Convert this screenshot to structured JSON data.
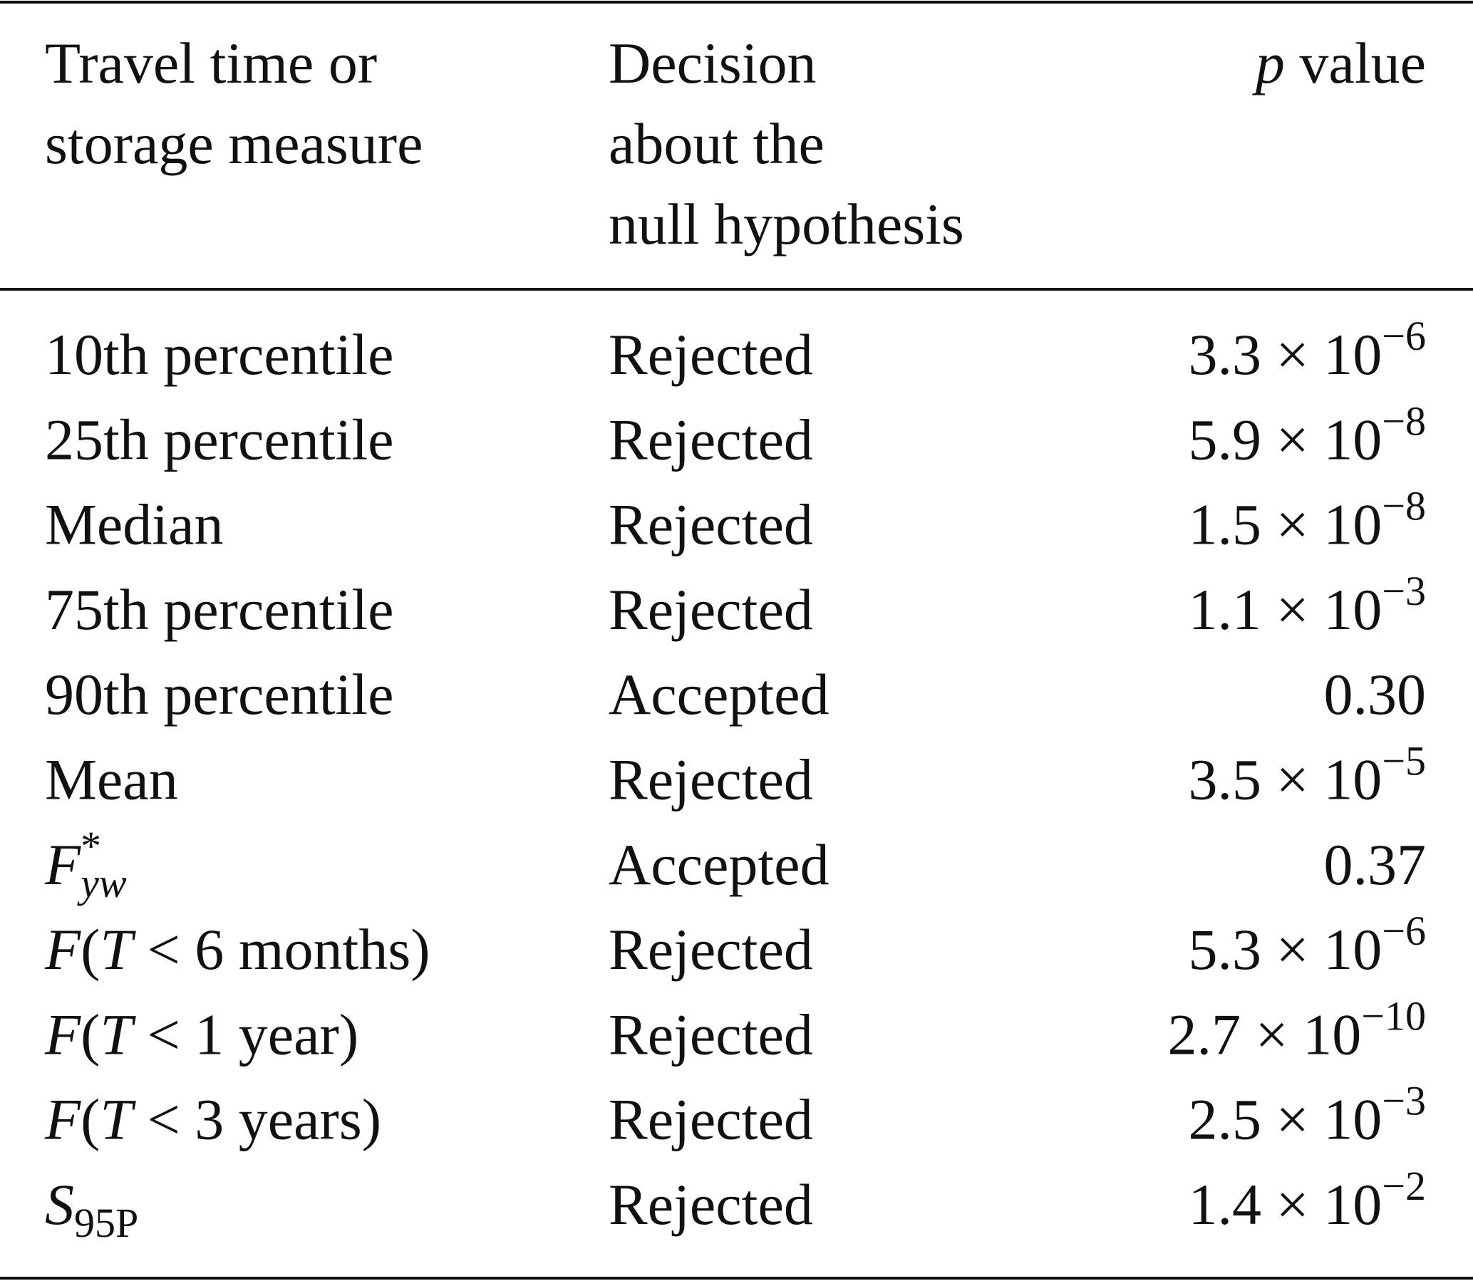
{
  "table": {
    "header": {
      "measure": [
        "Travel time or",
        "storage measure"
      ],
      "decision": [
        "Decision",
        "about the",
        "null hypothesis"
      ],
      "p_value": [
        {
          "text": "p",
          "style": "i"
        },
        {
          "text": " value"
        }
      ]
    },
    "rows": [
      {
        "measure": [
          {
            "text": "10th percentile"
          }
        ],
        "decision": "Rejected",
        "p_value": [
          {
            "text": "3.3 × 10"
          },
          {
            "text": "−6",
            "style": "sup"
          }
        ]
      },
      {
        "measure": [
          {
            "text": "25th percentile"
          }
        ],
        "decision": "Rejected",
        "p_value": [
          {
            "text": "5.9 × 10"
          },
          {
            "text": "−8",
            "style": "sup"
          }
        ]
      },
      {
        "measure": [
          {
            "text": "Median"
          }
        ],
        "decision": "Rejected",
        "p_value": [
          {
            "text": "1.5 × 10"
          },
          {
            "text": "−8",
            "style": "sup"
          }
        ]
      },
      {
        "measure": [
          {
            "text": "75th percentile"
          }
        ],
        "decision": "Rejected",
        "p_value": [
          {
            "text": "1.1 × 10"
          },
          {
            "text": "−3",
            "style": "sup"
          }
        ]
      },
      {
        "measure": [
          {
            "text": "90th percentile"
          }
        ],
        "decision": "Accepted",
        "p_value": [
          {
            "text": "0.30"
          }
        ]
      },
      {
        "measure": [
          {
            "text": "Mean"
          }
        ],
        "decision": "Rejected",
        "p_value": [
          {
            "text": "3.5 × 10"
          },
          {
            "text": "−5",
            "style": "sup"
          }
        ]
      },
      {
        "measure": [
          {
            "text": "F",
            "style": "i"
          },
          {
            "text": "*",
            "style": "sup"
          },
          {
            "text": "yw",
            "style": "sub-i"
          }
        ],
        "decision": "Accepted",
        "p_value": [
          {
            "text": "0.37"
          }
        ]
      },
      {
        "measure": [
          {
            "text": "F",
            "style": "i"
          },
          {
            "text": "("
          },
          {
            "text": "T",
            "style": "i"
          },
          {
            "text": " < 6 months)"
          }
        ],
        "decision": "Rejected",
        "p_value": [
          {
            "text": "5.3 × 10"
          },
          {
            "text": "−6",
            "style": "sup"
          }
        ]
      },
      {
        "measure": [
          {
            "text": "F",
            "style": "i"
          },
          {
            "text": "("
          },
          {
            "text": "T",
            "style": "i"
          },
          {
            "text": " < 1 year)"
          }
        ],
        "decision": "Rejected",
        "p_value": [
          {
            "text": "2.7 × 10"
          },
          {
            "text": "−10",
            "style": "sup"
          }
        ]
      },
      {
        "measure": [
          {
            "text": "F",
            "style": "i"
          },
          {
            "text": "("
          },
          {
            "text": "T",
            "style": "i"
          },
          {
            "text": " < 3 years)"
          }
        ],
        "decision": "Rejected",
        "p_value": [
          {
            "text": "2.5 × 10"
          },
          {
            "text": "−3",
            "style": "sup"
          }
        ]
      },
      {
        "measure": [
          {
            "text": "S",
            "style": "i"
          },
          {
            "text": "95P",
            "style": "sub"
          }
        ],
        "decision": "Rejected",
        "p_value": [
          {
            "text": "1.4 × 10"
          },
          {
            "text": "−2",
            "style": "sup"
          }
        ]
      }
    ]
  }
}
